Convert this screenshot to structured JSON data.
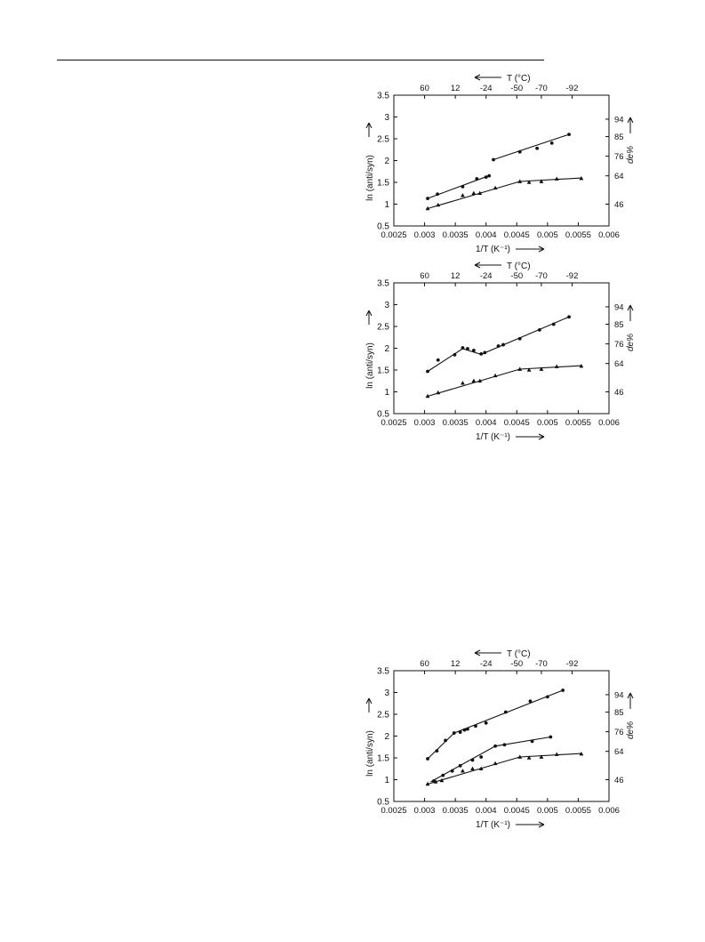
{
  "chart_data": [
    {
      "type": "scatter",
      "top_axis_label": "T (°C)",
      "top_ticks": [
        "60",
        "12",
        "-24",
        "-50",
        "-70",
        "-92"
      ],
      "top_tick_x": [
        0.003,
        0.0035,
        0.004,
        0.0045,
        0.0049,
        0.0054
      ],
      "xlabel": "1/T (K⁻¹)",
      "ylabel": "ln (anti/syn)",
      "right_label": "de%",
      "right_ticks": [
        "94",
        "85",
        "76",
        "64",
        "46"
      ],
      "right_tick_y": [
        2.95,
        2.55,
        2.1,
        1.65,
        1.0
      ],
      "xlim": [
        0.0025,
        0.006
      ],
      "ylim": [
        0.5,
        3.5
      ],
      "x_ticks": [
        "0.0025",
        "0.003",
        "0.0035",
        "0.004",
        "0.0045",
        "0.005",
        "0.0055",
        "0.006"
      ],
      "y_ticks": [
        "0.5",
        "1",
        "1.5",
        "2",
        "2.5",
        "3",
        "3.5"
      ],
      "series": [
        {
          "marker": "circle",
          "x": [
            0.00305,
            0.00321,
            0.00362,
            0.00385,
            0.004,
            0.00405
          ],
          "y": [
            1.13,
            1.23,
            1.4,
            1.58,
            1.62,
            1.65
          ],
          "fit": [
            [
              0.00305,
              1.13
            ],
            [
              0.00406,
              1.66
            ]
          ]
        },
        {
          "marker": "circle",
          "x": [
            0.00412,
            0.00455,
            0.00483,
            0.00507,
            0.00535
          ],
          "y": [
            2.02,
            2.2,
            2.28,
            2.4,
            2.6
          ],
          "fit": [
            [
              0.00412,
              2.02
            ],
            [
              0.00535,
              2.6
            ]
          ]
        },
        {
          "marker": "triangle",
          "x": [
            0.00305,
            0.00322,
            0.00362,
            0.0038,
            0.0039,
            0.00415,
            0.00455,
            0.0047,
            0.0049,
            0.00515,
            0.00555
          ],
          "y": [
            0.9,
            0.98,
            1.2,
            1.25,
            1.25,
            1.37,
            1.52,
            1.5,
            1.52,
            1.58,
            1.59
          ],
          "fit": [
            [
              0.00303,
              0.89
            ],
            [
              0.00455,
              1.52
            ],
            [
              0.00555,
              1.6
            ]
          ]
        }
      ]
    },
    {
      "type": "scatter",
      "top_axis_label": "T (°C)",
      "top_ticks": [
        "60",
        "12",
        "-24",
        "-50",
        "-70",
        "-92"
      ],
      "top_tick_x": [
        0.003,
        0.0035,
        0.004,
        0.0045,
        0.0049,
        0.0054
      ],
      "xlabel": "1/T (K⁻¹)",
      "ylabel": "ln (anti/syn)",
      "right_label": "de%",
      "right_ticks": [
        "94",
        "85",
        "76",
        "64",
        "46"
      ],
      "right_tick_y": [
        2.95,
        2.55,
        2.1,
        1.65,
        1.0
      ],
      "xlim": [
        0.0025,
        0.006
      ],
      "ylim": [
        0.5,
        3.5
      ],
      "x_ticks": [
        "0.0025",
        "0.003",
        "0.0035",
        "0.004",
        "0.0045",
        "0.005",
        "0.0055",
        "0.006"
      ],
      "y_ticks": [
        "0.5",
        "1",
        "1.5",
        "2",
        "2.5",
        "3",
        "3.5"
      ],
      "series": [
        {
          "marker": "circle",
          "x": [
            0.00305,
            0.00322,
            0.00349,
            0.00362,
            0.0037,
            0.0038,
            0.00392,
            0.00398,
            0.0042,
            0.00428,
            0.00455,
            0.00487,
            0.0051,
            0.00535
          ],
          "y": [
            1.47,
            1.73,
            1.85,
            2.01,
            1.99,
            1.95,
            1.87,
            1.9,
            2.05,
            2.08,
            2.22,
            2.42,
            2.55,
            2.72
          ],
          "fit": [
            [
              0.00305,
              1.47
            ],
            [
              0.00362,
              1.99
            ],
            [
              0.00392,
              1.86
            ],
            [
              0.00535,
              2.72
            ]
          ]
        },
        {
          "marker": "triangle",
          "x": [
            0.00305,
            0.00322,
            0.00362,
            0.0038,
            0.0039,
            0.00415,
            0.00455,
            0.0047,
            0.0049,
            0.00515,
            0.00555
          ],
          "y": [
            0.9,
            0.98,
            1.2,
            1.25,
            1.25,
            1.37,
            1.52,
            1.5,
            1.52,
            1.58,
            1.59
          ],
          "fit": [
            [
              0.00303,
              0.89
            ],
            [
              0.00455,
              1.52
            ],
            [
              0.00555,
              1.6
            ]
          ]
        }
      ]
    },
    {
      "type": "scatter",
      "top_axis_label": "T (°C)",
      "top_ticks": [
        "60",
        "12",
        "-24",
        "-50",
        "-70",
        "-92"
      ],
      "top_tick_x": [
        0.003,
        0.0035,
        0.004,
        0.0045,
        0.0049,
        0.0054
      ],
      "xlabel": "1/T (K⁻¹)",
      "ylabel": "ln (anti/syn)",
      "right_label": "de%",
      "right_ticks": [
        "94",
        "85",
        "76",
        "64",
        "46"
      ],
      "right_tick_y": [
        2.95,
        2.55,
        2.1,
        1.65,
        1.0
      ],
      "xlim": [
        0.0025,
        0.006
      ],
      "ylim": [
        0.5,
        3.5
      ],
      "x_ticks": [
        "0.0025",
        "0.003",
        "0.0035",
        "0.004",
        "0.0045",
        "0.005",
        "0.0055",
        "0.006"
      ],
      "y_ticks": [
        "0.5",
        "1",
        "1.5",
        "2",
        "2.5",
        "3",
        "3.5"
      ],
      "series": [
        {
          "marker": "circle",
          "x": [
            0.00305,
            0.0032,
            0.00334,
            0.00348,
            0.00358,
            0.00365,
            0.0037,
            0.00383,
            0.004,
            0.00432,
            0.00472,
            0.005,
            0.00525
          ],
          "y": [
            1.48,
            1.66,
            1.9,
            2.07,
            2.09,
            2.14,
            2.16,
            2.23,
            2.3,
            2.55,
            2.8,
            2.9,
            3.05
          ],
          "fit": [
            [
              0.00305,
              1.48
            ],
            [
              0.00348,
              2.07
            ],
            [
              0.00525,
              3.05
            ]
          ]
        },
        {
          "marker": "circle",
          "x": [
            0.00315,
            0.0033,
            0.00345,
            0.00358,
            0.00378,
            0.00392,
            0.00415,
            0.0043,
            0.00475,
            0.00505
          ],
          "y": [
            0.97,
            1.1,
            1.2,
            1.32,
            1.45,
            1.52,
            1.77,
            1.8,
            1.88,
            1.98
          ],
          "fit": [
            [
              0.0031,
              0.95
            ],
            [
              0.00415,
              1.77
            ],
            [
              0.00505,
              1.98
            ]
          ]
        },
        {
          "marker": "triangle",
          "x": [
            0.00305,
            0.00318,
            0.00328,
            0.00362,
            0.00378,
            0.00392,
            0.00415,
            0.00455,
            0.0047,
            0.0049,
            0.00515,
            0.00555
          ],
          "y": [
            0.9,
            0.95,
            0.98,
            1.2,
            1.25,
            1.25,
            1.37,
            1.52,
            1.5,
            1.52,
            1.58,
            1.59
          ],
          "fit": [
            [
              0.00303,
              0.89
            ],
            [
              0.00455,
              1.52
            ],
            [
              0.00555,
              1.6
            ]
          ]
        }
      ]
    }
  ]
}
